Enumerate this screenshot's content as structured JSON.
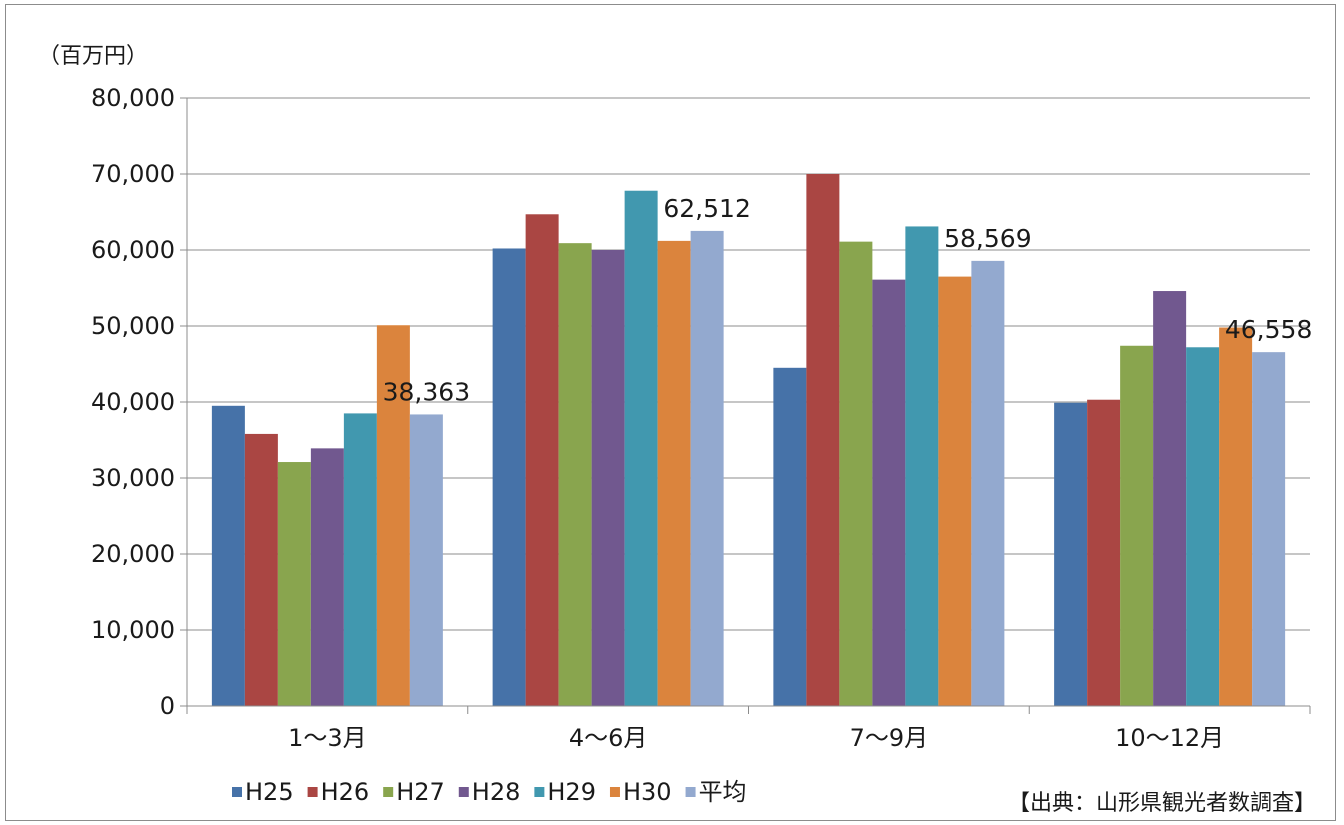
{
  "chart_data": {
    "type": "bar",
    "unit_label": "（百万円）",
    "categories": [
      "1～3月",
      "4～6月",
      "7～9月",
      "10～12月"
    ],
    "series": [
      {
        "name": "H25",
        "color": "#4672a8",
        "values": [
          39500,
          60200,
          44500,
          39900
        ]
      },
      {
        "name": "H26",
        "color": "#aa4643",
        "values": [
          35800,
          64700,
          70000,
          40300
        ]
      },
      {
        "name": "H27",
        "color": "#89a54e",
        "values": [
          32100,
          60900,
          61100,
          47400
        ]
      },
      {
        "name": "H28",
        "color": "#71588f",
        "values": [
          33900,
          60000,
          56100,
          54600
        ]
      },
      {
        "name": "H29",
        "color": "#4198af",
        "values": [
          38500,
          67800,
          63100,
          47200
        ]
      },
      {
        "name": "H30",
        "color": "#db843d",
        "values": [
          50100,
          61200,
          56500,
          49800
        ]
      },
      {
        "name": "平均",
        "color": "#93a9cf",
        "values": [
          38363,
          62512,
          58569,
          46558
        ]
      }
    ],
    "data_labels": [
      {
        "series": "平均",
        "category": "1～3月",
        "text": "38,363"
      },
      {
        "series": "平均",
        "category": "4～6月",
        "text": "62,512"
      },
      {
        "series": "平均",
        "category": "7～9月",
        "text": "58,569"
      },
      {
        "series": "平均",
        "category": "10～12月",
        "text": "46,558"
      }
    ],
    "y_ticks": [
      "0",
      "10,000",
      "20,000",
      "30,000",
      "40,000",
      "50,000",
      "60,000",
      "70,000",
      "80,000"
    ],
    "ylim": [
      0,
      80000
    ],
    "grid": true,
    "legend": "bottom",
    "source": "【出典：山形県観光者数調査】"
  }
}
